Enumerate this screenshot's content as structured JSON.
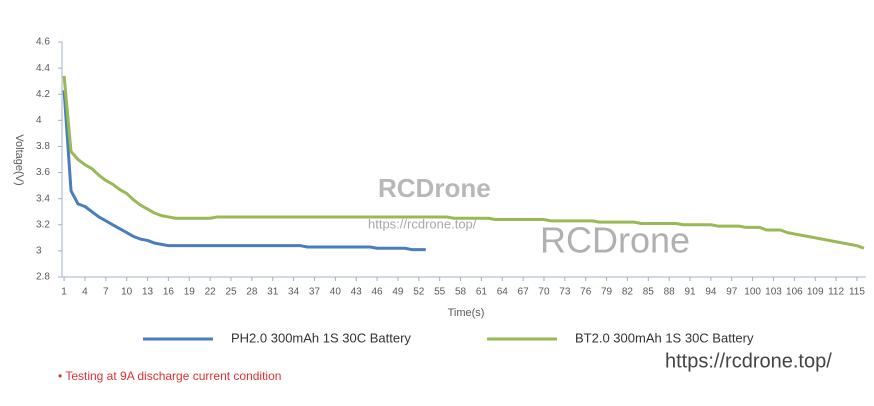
{
  "chart_data": {
    "type": "line",
    "x_label": "Time(s)",
    "y_label": "Voltage(V)",
    "x": [
      1,
      2,
      3,
      4,
      5,
      6,
      7,
      8,
      9,
      10,
      11,
      12,
      13,
      14,
      15,
      16,
      17,
      18,
      19,
      20,
      21,
      22,
      23,
      24,
      25,
      26,
      27,
      28,
      29,
      30,
      31,
      32,
      33,
      34,
      35,
      36,
      37,
      38,
      39,
      40,
      41,
      42,
      43,
      44,
      45,
      46,
      47,
      48,
      49,
      50,
      51,
      52,
      53,
      54,
      55,
      56,
      57,
      58,
      59,
      60,
      61,
      62,
      63,
      64,
      65,
      66,
      67,
      68,
      69,
      70,
      71,
      72,
      73,
      74,
      75,
      76,
      77,
      78,
      79,
      80,
      81,
      82,
      83,
      84,
      85,
      86,
      87,
      88,
      89,
      90,
      91,
      92,
      93,
      94,
      95,
      96,
      97,
      98,
      99,
      100,
      101,
      102,
      103,
      104,
      105,
      106,
      107,
      108,
      109,
      110,
      111,
      112,
      113,
      114,
      115,
      116
    ],
    "xlim": [
      0.7,
      116.3
    ],
    "xticks": [
      1,
      4,
      7,
      10,
      13,
      16,
      19,
      22,
      25,
      28,
      31,
      34,
      37,
      40,
      43,
      46,
      49,
      52,
      55,
      58,
      61,
      64,
      67,
      70,
      73,
      76,
      79,
      82,
      85,
      88,
      91,
      94,
      97,
      100,
      103,
      106,
      109,
      112,
      115
    ],
    "ylim": [
      2.8,
      4.6
    ],
    "yticks": [
      2.8,
      3,
      3.2,
      3.4,
      3.6,
      3.8,
      4,
      4.2,
      4.4,
      4.6
    ],
    "series": [
      {
        "name": "PH2.0 300mAh 1S 30C Battery",
        "color": "#4a7ebb",
        "values": [
          4.23,
          3.46,
          3.36,
          3.34,
          3.3,
          3.26,
          3.23,
          3.2,
          3.17,
          3.14,
          3.11,
          3.09,
          3.08,
          3.06,
          3.05,
          3.04,
          3.04,
          3.04,
          3.04,
          3.04,
          3.04,
          3.04,
          3.04,
          3.04,
          3.04,
          3.04,
          3.04,
          3.04,
          3.04,
          3.04,
          3.04,
          3.04,
          3.04,
          3.04,
          3.04,
          3.03,
          3.03,
          3.03,
          3.03,
          3.03,
          3.03,
          3.03,
          3.03,
          3.03,
          3.03,
          3.02,
          3.02,
          3.02,
          3.02,
          3.02,
          3.01,
          3.01,
          3.01,
          null,
          null,
          null,
          null,
          null,
          null,
          null,
          null,
          null,
          null,
          null,
          null,
          null,
          null,
          null,
          null,
          null,
          null,
          null,
          null,
          null,
          null,
          null,
          null,
          null,
          null,
          null,
          null,
          null,
          null,
          null,
          null,
          null,
          null,
          null,
          null,
          null,
          null,
          null,
          null,
          null,
          null,
          null,
          null,
          null,
          null,
          null,
          null,
          null,
          null,
          null,
          null,
          null,
          null,
          null,
          null,
          null,
          null,
          null,
          null,
          null,
          null,
          null
        ]
      },
      {
        "name": "BT2.0 300mAh 1S 30C Battery",
        "color": "#98b954",
        "values": [
          4.34,
          3.76,
          3.7,
          3.66,
          3.63,
          3.58,
          3.54,
          3.51,
          3.47,
          3.44,
          3.39,
          3.35,
          3.32,
          3.29,
          3.27,
          3.26,
          3.25,
          3.25,
          3.25,
          3.25,
          3.25,
          3.25,
          3.26,
          3.26,
          3.26,
          3.26,
          3.26,
          3.26,
          3.26,
          3.26,
          3.26,
          3.26,
          3.26,
          3.26,
          3.26,
          3.26,
          3.26,
          3.26,
          3.26,
          3.26,
          3.26,
          3.26,
          3.26,
          3.26,
          3.26,
          3.26,
          3.26,
          3.26,
          3.26,
          3.26,
          3.26,
          3.26,
          3.26,
          3.26,
          3.26,
          3.26,
          3.25,
          3.25,
          3.25,
          3.25,
          3.25,
          3.25,
          3.24,
          3.24,
          3.24,
          3.24,
          3.24,
          3.24,
          3.24,
          3.24,
          3.23,
          3.23,
          3.23,
          3.23,
          3.23,
          3.23,
          3.23,
          3.22,
          3.22,
          3.22,
          3.22,
          3.22,
          3.22,
          3.21,
          3.21,
          3.21,
          3.21,
          3.21,
          3.21,
          3.2,
          3.2,
          3.2,
          3.2,
          3.2,
          3.19,
          3.19,
          3.19,
          3.19,
          3.18,
          3.18,
          3.18,
          3.16,
          3.16,
          3.16,
          3.14,
          3.13,
          3.12,
          3.11,
          3.1,
          3.09,
          3.08,
          3.07,
          3.06,
          3.05,
          3.04,
          3.02
        ]
      }
    ],
    "note": "• Testing at 9A discharge current condition",
    "watermarks": [
      "RCDrone",
      "https://rcdrone.top/",
      "RCDrone",
      "https://rcdrone.top/"
    ]
  }
}
